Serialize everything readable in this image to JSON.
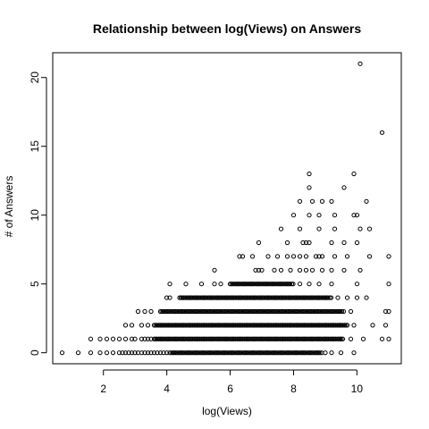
{
  "chart_data": {
    "type": "scatter",
    "title": "Relationship between log(Views) on Answers",
    "xlabel": "log(Views)",
    "ylabel": "# of Answers",
    "xlim": [
      0.4,
      11.4
    ],
    "ylim": [
      -0.8,
      21.8
    ],
    "x_ticks": [
      2,
      4,
      6,
      8,
      10
    ],
    "y_ticks": [
      0,
      5,
      10,
      15,
      20
    ],
    "grid": false,
    "legend": "none",
    "marker": "open-circle",
    "marker_color": "#000000",
    "series": [
      {
        "bands": [
          {
            "y": 0,
            "x_dense": [
              4.1,
              8.9
            ],
            "x_sparse": [
              0.7,
              1.2,
              1.6,
              1.9,
              2.1,
              2.3,
              2.5,
              2.6,
              2.7,
              2.8,
              2.9,
              3.0,
              3.1,
              3.2,
              3.3,
              3.4,
              3.5,
              3.6,
              3.7,
              3.8,
              3.9,
              4.0,
              9.0,
              9.2,
              9.5,
              9.9
            ]
          },
          {
            "y": 1,
            "x_dense": [
              3.6,
              9.6
            ],
            "x_sparse": [
              1.6,
              1.9,
              2.1,
              2.3,
              2.5,
              2.7,
              2.9,
              3.0,
              3.2,
              3.3,
              3.4,
              3.5,
              9.8,
              10.2,
              10.8,
              11.0
            ]
          },
          {
            "y": 2,
            "x_dense": [
              3.6,
              9.7
            ],
            "x_sparse": [
              2.7,
              2.9,
              3.2,
              3.4,
              9.9,
              10.5,
              10.9
            ]
          },
          {
            "y": 3,
            "x_dense": [
              3.8,
              9.6
            ],
            "x_sparse": [
              3.1,
              3.3,
              3.5,
              9.8,
              10.9,
              11.0
            ]
          },
          {
            "y": 4,
            "x_dense": [
              4.4,
              9.2
            ],
            "x_sparse": [
              4.0,
              4.1,
              9.4,
              9.7,
              10.0,
              10.3
            ]
          },
          {
            "y": 5,
            "x_dense": [
              6.0,
              8.0
            ],
            "x_sparse": [
              4.1,
              4.6,
              5.1,
              5.5,
              5.7,
              8.2,
              8.5,
              8.8,
              9.2,
              10.0,
              11.0
            ]
          },
          {
            "y": 6,
            "x_dense": [],
            "x_sparse": [
              5.5,
              6.8,
              6.9,
              7.0,
              7.4,
              7.6,
              7.9,
              8.2,
              8.4,
              8.6,
              8.9,
              9.2,
              9.6,
              10.1
            ]
          },
          {
            "y": 7,
            "x_dense": [],
            "x_sparse": [
              6.3,
              6.4,
              6.7,
              7.2,
              7.5,
              7.8,
              8.0,
              8.2,
              8.4,
              8.7,
              8.8,
              8.9,
              9.3,
              9.7,
              10.4,
              11.0
            ]
          },
          {
            "y": 8,
            "x_dense": [],
            "x_sparse": [
              6.9,
              7.8,
              8.3,
              8.4,
              8.5,
              9.2,
              9.6,
              10.0
            ]
          },
          {
            "y": 9,
            "x_dense": [],
            "x_sparse": [
              7.6,
              8.2,
              8.8,
              9.3,
              10.1,
              10.4
            ]
          },
          {
            "y": 10,
            "x_dense": [],
            "x_sparse": [
              8.0,
              8.5,
              8.8,
              9.3,
              9.9,
              10.0
            ]
          },
          {
            "y": 11,
            "x_dense": [],
            "x_sparse": [
              8.2,
              8.6,
              8.9,
              9.2,
              10.3
            ]
          },
          {
            "y": 12,
            "x_dense": [],
            "x_sparse": [
              8.5,
              9.6
            ]
          },
          {
            "y": 13,
            "x_dense": [],
            "x_sparse": [
              8.5,
              9.9
            ]
          },
          {
            "y": 16,
            "x_dense": [],
            "x_sparse": [
              10.8
            ]
          },
          {
            "y": 21,
            "x_dense": [],
            "x_sparse": [
              10.1
            ]
          }
        ]
      }
    ]
  }
}
